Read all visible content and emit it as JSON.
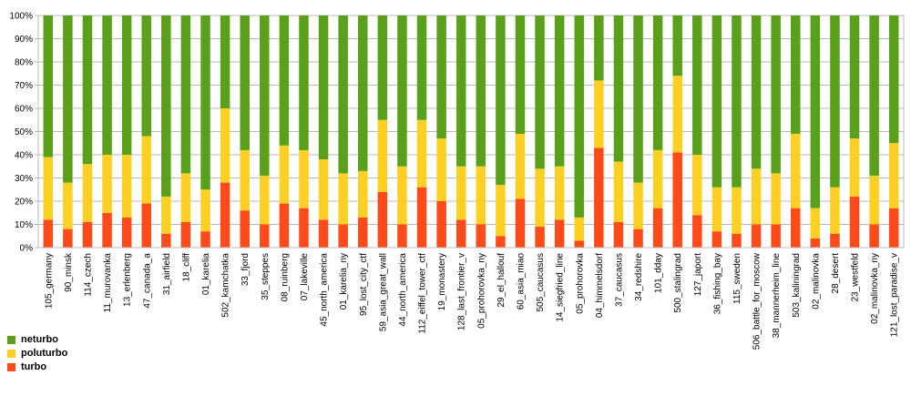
{
  "chart_data": {
    "type": "bar",
    "stacked": true,
    "categories": [
      "105_germany",
      "90_minsk",
      "114_czech",
      "11_murovanka",
      "13_erlenberg",
      "47_canada_a",
      "31_airfield",
      "18_cliff",
      "01_karelia",
      "502_kamchatka",
      "33_fjord",
      "35_steppes",
      "08_ruinberg",
      "07_lakeville",
      "45_north_america",
      "01_karelia_ny",
      "95_lost_city_ctf",
      "59_asia_great_wall",
      "44_north_america",
      "112_eiffel_tower_ctf",
      "19_monastery",
      "128_last_frontier_v",
      "05_prohorovka_ny",
      "29_el_hallouf",
      "60_asia_miao",
      "505_caucasus",
      "14_siegfried_line",
      "05_prohorovka",
      "04_himmelsdorf",
      "37_caucasus",
      "34_redshire",
      "101_dday",
      "500_stalingrad",
      "127_japort",
      "36_fishing_bay",
      "115_sweden",
      "506_battle_for_moscow",
      "38_mannerheim_line",
      "503_kaliningrad",
      "02_malinovka",
      "28_desert",
      "23_westfeld",
      "02_malinovka_ny",
      "121_lost_paradise_v"
    ],
    "series": [
      {
        "name": "turbo",
        "color": "#ff4a1a",
        "values": [
          12,
          8,
          11,
          15,
          13,
          19,
          6,
          11,
          7,
          28,
          16,
          10,
          19,
          17,
          12,
          10,
          13,
          24,
          10,
          26,
          20,
          12,
          10,
          5,
          21,
          9,
          12,
          3,
          43,
          11,
          8,
          17,
          41,
          14,
          7,
          6,
          10,
          10,
          17,
          4,
          6,
          22,
          10,
          17
        ]
      },
      {
        "name": "poluturbo",
        "color": "#ffd024",
        "values": [
          27,
          20,
          25,
          25,
          27,
          29,
          16,
          21,
          18,
          32,
          26,
          21,
          25,
          25,
          26,
          22,
          20,
          31,
          25,
          29,
          27,
          23,
          25,
          22,
          28,
          25,
          23,
          10,
          29,
          26,
          20,
          25,
          33,
          26,
          19,
          20,
          24,
          22,
          32,
          13,
          20,
          25,
          21,
          28
        ]
      },
      {
        "name": "neturbo",
        "color": "#5aa01a",
        "values": [
          61,
          72,
          64,
          60,
          60,
          52,
          78,
          68,
          75,
          40,
          58,
          69,
          56,
          58,
          62,
          68,
          67,
          45,
          65,
          45,
          53,
          65,
          65,
          73,
          51,
          66,
          65,
          87,
          28,
          63,
          72,
          58,
          26,
          60,
          74,
          74,
          66,
          68,
          51,
          83,
          74,
          53,
          69,
          55
        ]
      }
    ],
    "ylim": [
      0,
      100
    ],
    "yticks": [
      "0%",
      "10%",
      "20%",
      "30%",
      "40%",
      "50%",
      "60%",
      "70%",
      "80%",
      "90%",
      "100%"
    ],
    "legend_position": "bottom-left",
    "grid": "horizontal"
  }
}
